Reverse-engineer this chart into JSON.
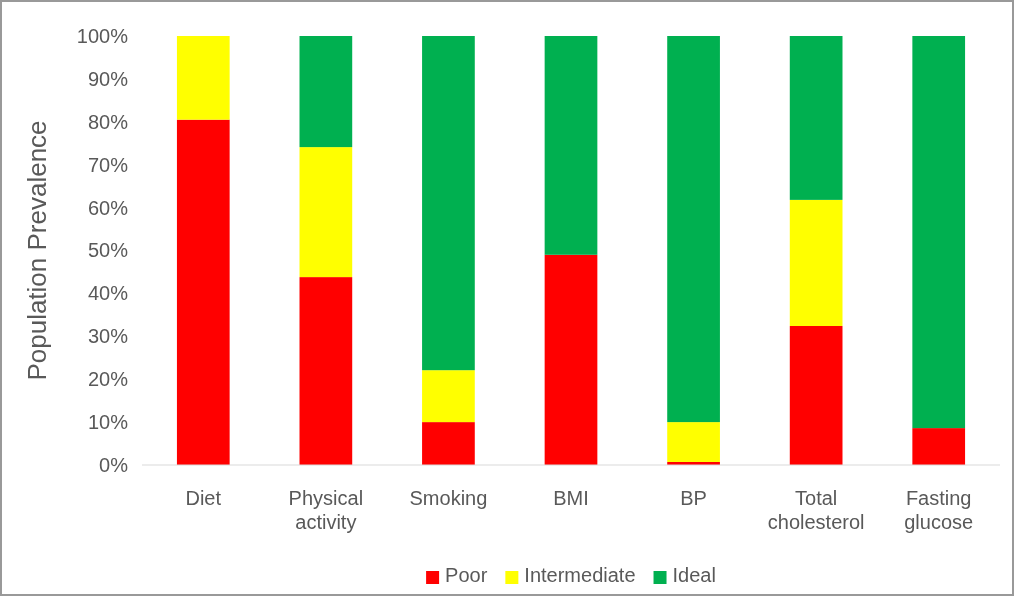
{
  "chart_data": {
    "type": "bar",
    "stacked": true,
    "ylabel": "Population Prevalence",
    "categories": [
      "Diet",
      "Physical activity",
      "Smoking",
      "BMI",
      "BP",
      "Total cholesterol",
      "Fasting glucose"
    ],
    "series": [
      {
        "name": "Poor",
        "color": "#ff0000",
        "values": [
          80.5,
          43.8,
          10.0,
          49.0,
          0.7,
          32.4,
          8.6
        ]
      },
      {
        "name": "Intermediate",
        "color": "#ffff00",
        "values": [
          19.5,
          30.3,
          12.1,
          0,
          9.3,
          29.4,
          0
        ]
      },
      {
        "name": "Ideal",
        "color": "#00b050",
        "values": [
          0,
          25.9,
          77.9,
          51.0,
          90.0,
          38.2,
          91.4
        ]
      }
    ],
    "ylim": [
      0,
      100
    ],
    "yticks": [
      {
        "value": 0,
        "label": "0%"
      },
      {
        "value": 10,
        "label": "10%"
      },
      {
        "value": 20,
        "label": "20%"
      },
      {
        "value": 30,
        "label": "30%"
      },
      {
        "value": 40,
        "label": "40%"
      },
      {
        "value": 50,
        "label": "50%"
      },
      {
        "value": 60,
        "label": "60%"
      },
      {
        "value": 70,
        "label": "70%"
      },
      {
        "value": 80,
        "label": "80%"
      },
      {
        "value": 90,
        "label": "90%"
      },
      {
        "value": 100,
        "label": "100%"
      }
    ],
    "legend": "bottom",
    "grid": false
  }
}
